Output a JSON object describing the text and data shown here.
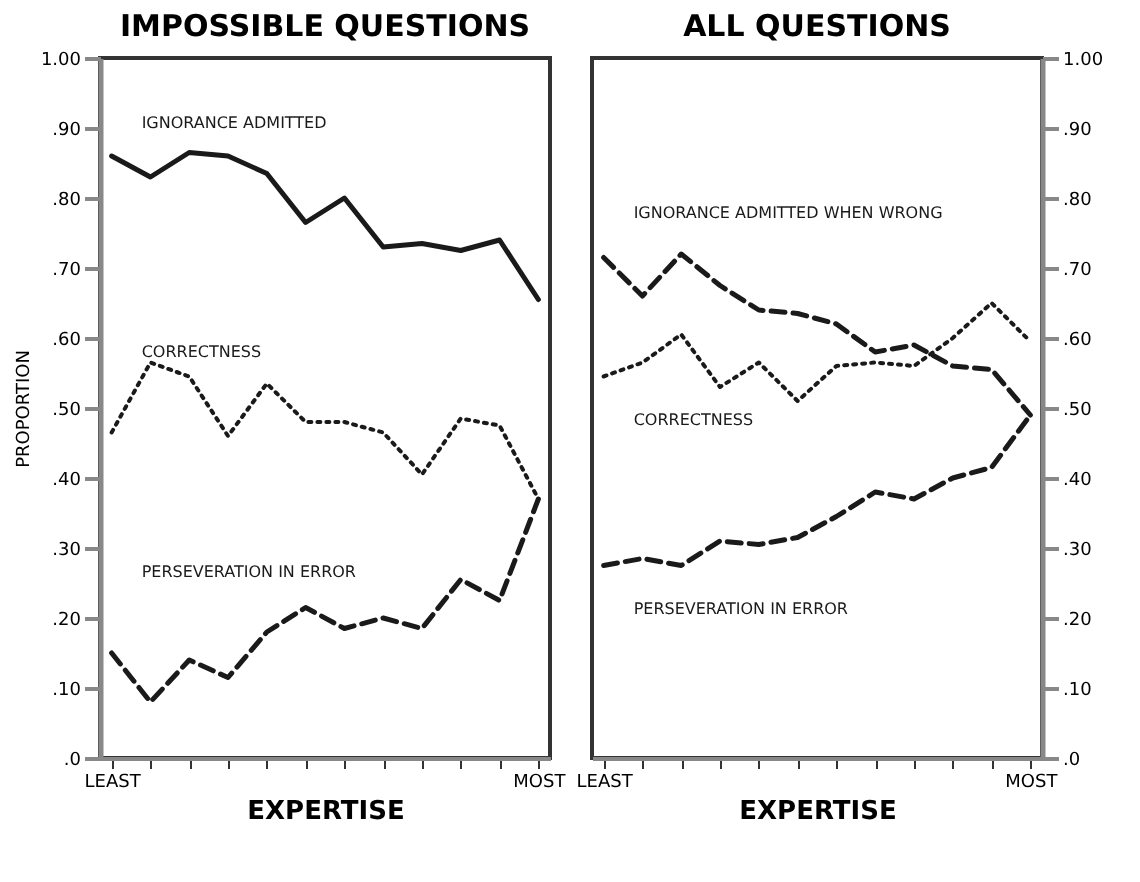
{
  "chart_data": [
    {
      "type": "line",
      "title": "IMPOSSIBLE QUESTIONS",
      "xlabel": "EXPERTISE",
      "ylabel": "PROPORTION",
      "categories": [
        "LEAST",
        null,
        null,
        null,
        null,
        null,
        null,
        null,
        null,
        null,
        null,
        "MOST"
      ],
      "series": [
        {
          "name": "IGNORANCE ADMITTED",
          "color": "#1a1a1a",
          "line_style": "solid",
          "values": [
            0.86,
            0.83,
            0.865,
            0.86,
            0.835,
            0.765,
            0.8,
            0.73,
            0.735,
            0.725,
            0.74,
            0.655
          ]
        },
        {
          "name": "CORRECTNESS",
          "color": "#1a1a1a",
          "line_style": "dotted",
          "values": [
            0.465,
            0.565,
            0.545,
            0.46,
            0.535,
            0.48,
            0.48,
            0.465,
            0.405,
            0.485,
            0.475,
            0.37
          ]
        },
        {
          "name": "PERSEVERATION IN ERROR",
          "color": "#1a1a1a",
          "line_style": "dashed",
          "values": [
            0.15,
            0.08,
            0.14,
            0.115,
            0.18,
            0.215,
            0.185,
            0.2,
            0.185,
            0.255,
            0.225,
            0.37
          ]
        }
      ],
      "ylim": [
        0,
        1
      ],
      "yticks": [
        {
          "value": 0,
          "label": ".0"
        },
        {
          "value": 0.1,
          "label": ".10"
        },
        {
          "value": 0.2,
          "label": ".20"
        },
        {
          "value": 0.3,
          "label": ".30"
        },
        {
          "value": 0.4,
          "label": ".40"
        },
        {
          "value": 0.5,
          "label": ".50"
        },
        {
          "value": 0.6,
          "label": ".60"
        },
        {
          "value": 0.7,
          "label": ".70"
        },
        {
          "value": 0.8,
          "label": ".80"
        },
        {
          "value": 0.9,
          "label": ".90"
        },
        {
          "value": 1,
          "label": "1.00"
        }
      ],
      "tick_labels": true
    },
    {
      "type": "line",
      "title": "ALL QUESTIONS",
      "xlabel": "EXPERTISE",
      "categories": [
        "LEAST",
        null,
        null,
        null,
        null,
        null,
        null,
        null,
        null,
        null,
        null,
        "MOST"
      ],
      "series": [
        {
          "name": "IGNORANCE ADMITTED WHEN WRONG",
          "color": "#1a1a1a",
          "line_style": "dashed",
          "values": [
            0.715,
            0.66,
            0.72,
            0.675,
            0.64,
            0.635,
            0.62,
            0.58,
            0.59,
            0.56,
            0.555,
            0.49
          ]
        },
        {
          "name": "CORRECTNESS",
          "color": "#1a1a1a",
          "line_style": "dotted",
          "values": [
            0.545,
            0.565,
            0.605,
            0.53,
            0.565,
            0.51,
            0.56,
            0.565,
            0.56,
            0.6,
            0.65,
            0.595
          ]
        },
        {
          "name": "PERSEVERATION IN ERROR",
          "color": "#1a1a1a",
          "line_style": "dashed",
          "values": [
            0.275,
            0.285,
            0.275,
            0.31,
            0.305,
            0.315,
            0.345,
            0.38,
            0.37,
            0.4,
            0.415,
            0.49
          ]
        }
      ],
      "ylim": [
        0,
        1
      ],
      "yticks": [
        {
          "value": 0,
          "label": ".0"
        },
        {
          "value": 0.1,
          "label": ".10"
        },
        {
          "value": 0.2,
          "label": ".20"
        },
        {
          "value": 0.3,
          "label": ".30"
        },
        {
          "value": 0.4,
          "label": ".40"
        },
        {
          "value": 0.5,
          "label": ".50"
        },
        {
          "value": 0.6,
          "label": ".60"
        },
        {
          "value": 0.7,
          "label": ".70"
        },
        {
          "value": 0.8,
          "label": ".80"
        },
        {
          "value": 0.9,
          "label": ".90"
        },
        {
          "value": 1,
          "label": "1.00"
        }
      ],
      "tick_labels": true
    }
  ]
}
